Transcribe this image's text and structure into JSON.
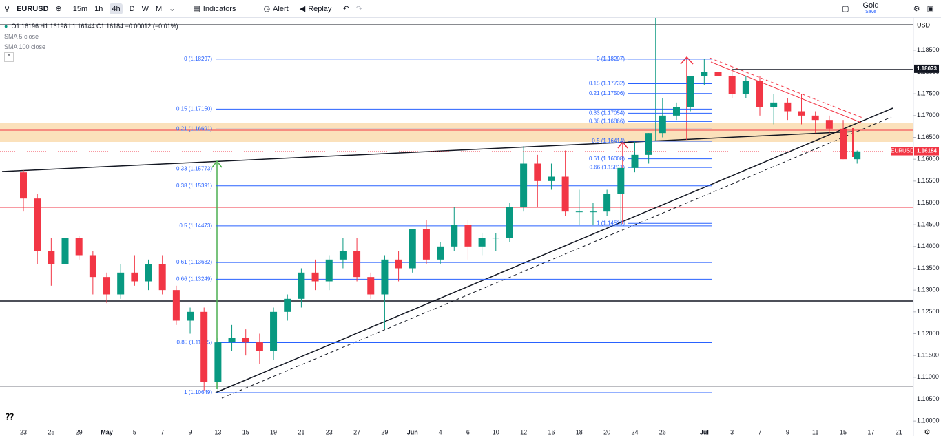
{
  "toolbar": {
    "symbol": "EURUSD",
    "intervals": [
      "15m",
      "1h",
      "4h",
      "D",
      "W",
      "M"
    ],
    "indicators": "Indicators",
    "alert": "Alert",
    "replay": "Replay",
    "layout_name": "Gold",
    "layout_status": "Save"
  },
  "legend": {
    "ohlc": "O1.16196 H1.16198 L1.16144 C1.16184 −0.00012 (−0.01%)",
    "indicators": [
      "SMA 5 close",
      "SMA 100 close"
    ]
  },
  "chart_data": {
    "type": "candlestick",
    "currency": "USD",
    "grid": false,
    "up_color": "#089981",
    "down_color": "#f23645",
    "categories": [
      "23",
      null,
      "25",
      null,
      "29",
      null,
      "May",
      null,
      "5",
      null,
      "7",
      null,
      "9",
      null,
      "13",
      null,
      "15",
      null,
      "19",
      null,
      "21",
      null,
      "23",
      null,
      "27",
      null,
      "29",
      null,
      "Jun",
      null,
      "4",
      null,
      "6",
      null,
      "10",
      null,
      "12",
      null,
      "16",
      null,
      "18",
      null,
      "20",
      null,
      "24",
      null,
      "26",
      null,
      null,
      "Jul",
      null,
      "3",
      null,
      "7",
      null,
      "9",
      null,
      "11",
      null,
      "15",
      null,
      "17",
      null,
      "21"
    ],
    "open": [
      1.157,
      1.151,
      1.139,
      1.136,
      1.142,
      1.138,
      1.133,
      1.129,
      1.134,
      1.132,
      1.136,
      1.13,
      1.123,
      1.125,
      1.109,
      1.118,
      1.119,
      1.118,
      1.116,
      1.125,
      1.128,
      1.134,
      1.132,
      1.137,
      1.139,
      1.133,
      1.129,
      1.137,
      1.135,
      1.144,
      1.137,
      1.14,
      1.145,
      1.14,
      1.142,
      1.142,
      1.149,
      1.159,
      1.155,
      1.156,
      1.148,
      1.148,
      1.148,
      1.152,
      1.158,
      1.161,
      1.166,
      1.17,
      1.172,
      1.179,
      1.18,
      1.179,
      1.175,
      1.178,
      1.172,
      1.173,
      1.171,
      1.17,
      1.169,
      1.167,
      1.16,
      null,
      null,
      null
    ],
    "high": [
      1.1575,
      1.152,
      1.142,
      1.143,
      1.1425,
      1.139,
      1.134,
      1.136,
      1.138,
      1.137,
      1.138,
      1.131,
      1.126,
      1.126,
      1.119,
      1.122,
      1.121,
      1.12,
      1.126,
      1.129,
      1.135,
      1.137,
      1.138,
      1.142,
      1.142,
      1.134,
      1.138,
      1.139,
      1.144,
      1.146,
      1.141,
      1.149,
      1.146,
      1.143,
      1.143,
      1.15,
      1.163,
      1.161,
      1.159,
      1.162,
      1.153,
      1.15,
      1.153,
      1.158,
      1.164,
      1.166,
      1.174,
      1.173,
      1.179,
      1.183,
      1.181,
      1.181,
      1.179,
      1.179,
      1.175,
      1.174,
      1.175,
      1.171,
      1.17,
      1.169,
      1.162,
      null,
      null,
      null
    ],
    "low": [
      1.148,
      1.136,
      1.131,
      1.134,
      1.137,
      1.129,
      1.127,
      1.128,
      1.131,
      1.13,
      1.129,
      1.122,
      1.12,
      1.107,
      1.1065,
      1.116,
      1.115,
      1.113,
      1.114,
      1.123,
      1.126,
      1.13,
      1.13,
      1.135,
      1.132,
      1.128,
      1.121,
      1.132,
      1.134,
      1.136,
      1.136,
      1.139,
      1.137,
      1.138,
      1.139,
      1.141,
      1.148,
      1.149,
      1.153,
      1.147,
      1.145,
      1.145,
      1.147,
      1.145,
      1.157,
      1.159,
      1.165,
      1.169,
      1.171,
      1.177,
      1.175,
      1.174,
      1.174,
      1.17,
      1.168,
      1.169,
      1.168,
      1.166,
      1.166,
      1.16,
      1.159,
      null,
      null,
      null
    ],
    "close": [
      1.151,
      1.139,
      1.136,
      1.142,
      1.138,
      1.133,
      1.129,
      1.134,
      1.132,
      1.136,
      1.13,
      1.123,
      1.125,
      1.109,
      1.118,
      1.119,
      1.118,
      1.116,
      1.125,
      1.128,
      1.134,
      1.132,
      1.137,
      1.139,
      1.133,
      1.129,
      1.137,
      1.135,
      1.144,
      1.137,
      1.14,
      1.145,
      1.14,
      1.142,
      1.142,
      1.149,
      1.159,
      1.155,
      1.156,
      1.148,
      1.148,
      1.148,
      1.152,
      1.158,
      1.161,
      1.166,
      1.17,
      1.172,
      1.179,
      1.18,
      1.179,
      1.175,
      1.178,
      1.172,
      1.173,
      1.171,
      1.17,
      1.169,
      1.167,
      1.16,
      1.1618,
      null,
      null,
      null
    ],
    "ylim": [
      1.0986,
      1.1924
    ],
    "yticks": [
      {
        "value": 1.185,
        "label": "1.18500"
      },
      {
        "value": 1.18,
        "label": "1.18000"
      },
      {
        "value": 1.175,
        "label": "1.17500"
      },
      {
        "value": 1.17,
        "label": "1.17000"
      },
      {
        "value": 1.165,
        "label": "1.16500"
      },
      {
        "value": 1.16,
        "label": "1.16000"
      },
      {
        "value": 1.155,
        "label": "1.15500"
      },
      {
        "value": 1.15,
        "label": "1.15000"
      },
      {
        "value": 1.145,
        "label": "1.14500"
      },
      {
        "value": 1.14,
        "label": "1.14000"
      },
      {
        "value": 1.135,
        "label": "1.13500"
      },
      {
        "value": 1.13,
        "label": "1.13000"
      },
      {
        "value": 1.125,
        "label": "1.12500"
      },
      {
        "value": 1.12,
        "label": "1.12000"
      },
      {
        "value": 1.115,
        "label": "1.11500"
      },
      {
        "value": 1.11,
        "label": "1.11000"
      },
      {
        "value": 1.105,
        "label": "1.10500"
      },
      {
        "value": 1.1,
        "label": "1.10000"
      }
    ],
    "fib_left": [
      {
        "label": "0 (1.18297)",
        "value": 1.18297
      },
      {
        "label": "0.15 (1.17150)",
        "value": 1.1715
      },
      {
        "label": "0.21 (1.16691)",
        "value": 1.16691
      },
      {
        "label": "0.33 (1.15773)",
        "value": 1.15773
      },
      {
        "label": "0.38 (1.15391)",
        "value": 1.15391
      },
      {
        "label": "0.5 (1.14473)",
        "value": 1.14473
      },
      {
        "label": "0.61 (1.13632)",
        "value": 1.13632
      },
      {
        "label": "0.66 (1.13249)",
        "value": 1.13249
      },
      {
        "label": "0.85 (1.11795)",
        "value": 1.11795
      },
      {
        "label": "1 (1.10649)",
        "value": 1.10649
      }
    ],
    "fib_right": [
      {
        "label": "0 (1.18297)",
        "value": 1.18297
      },
      {
        "label": "0.15 (1.17732)",
        "value": 1.17732
      },
      {
        "label": "0.21 (1.17506)",
        "value": 1.17506
      },
      {
        "label": "0.33 (1.17054)",
        "value": 1.17054
      },
      {
        "label": "0.38 (1.16866)",
        "value": 1.16866
      },
      {
        "label": "0.5 (1.16414)",
        "value": 1.16414
      },
      {
        "label": "0.61 (1.16008)",
        "value": 1.16008
      },
      {
        "label": "0.66 (1.15811)",
        "value": 1.15811
      },
      {
        "label": "1 (1.14531)",
        "value": 1.14531
      }
    ],
    "price_tags": [
      {
        "value": 1.18073,
        "color": "#131722"
      },
      {
        "name": "EURUSD",
        "value": 1.16184,
        "color": "#f23645"
      }
    ]
  }
}
